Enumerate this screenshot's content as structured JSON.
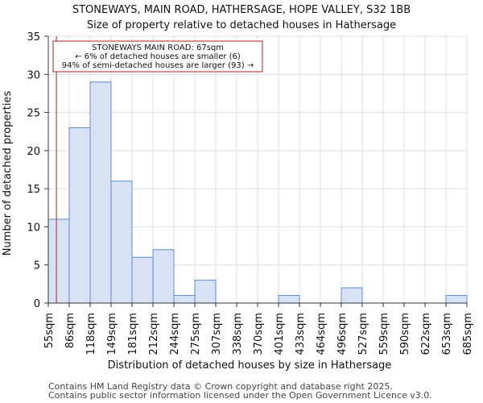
{
  "chart_data": {
    "type": "bar",
    "title": "STONEWAYS, MAIN ROAD, HATHERSAGE, HOPE VALLEY, S32 1BB",
    "subtitle": "Size of property relative to detached houses in Hathersage",
    "xlabel": "Distribution of detached houses by size in Hathersage",
    "ylabel": "Number of detached properties",
    "ylim": [
      0,
      35
    ],
    "yticks": [
      "0",
      "5",
      "10",
      "15",
      "20",
      "25",
      "30",
      "35"
    ],
    "bin_edges": [
      "55sqm",
      "86sqm",
      "118sqm",
      "149sqm",
      "181sqm",
      "212sqm",
      "244sqm",
      "275sqm",
      "307sqm",
      "338sqm",
      "370sqm",
      "401sqm",
      "433sqm",
      "464sqm",
      "496sqm",
      "527sqm",
      "559sqm",
      "590sqm",
      "622sqm",
      "653sqm",
      "685sqm"
    ],
    "values": [
      11,
      23,
      29,
      16,
      6,
      7,
      1,
      3,
      0,
      0,
      0,
      1,
      0,
      0,
      2,
      0,
      0,
      0,
      0,
      1
    ],
    "marker": {
      "value_sqm": 67,
      "label_lines": [
        "STONEWAYS MAIN ROAD: 67sqm",
        "← 6% of detached houses are smaller (6)",
        "94% of semi-detached houses are larger (93) →"
      ]
    },
    "colors": {
      "bar_fill": "#d9e2f4",
      "bar_stroke": "#5b8bd0",
      "marker": "#b22222",
      "grid": "#d9dee6"
    }
  },
  "footer": {
    "line1": "Contains HM Land Registry data © Crown copyright and database right 2025.",
    "line2": "Contains public sector information licensed under the Open Government Licence v3.0."
  }
}
